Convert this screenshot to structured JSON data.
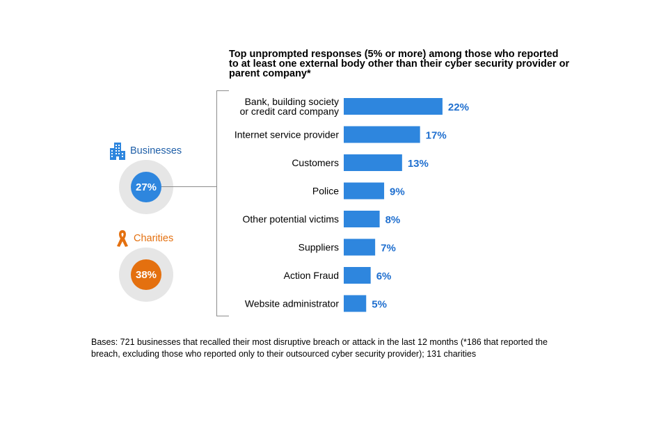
{
  "title_lines": [
    "Top unprompted responses (5% or more) among those who reported",
    "to at least one external body other than their cyber security provider or",
    "parent company*"
  ],
  "segments": {
    "businesses": {
      "label": "Businesses",
      "value": "27%",
      "color": "#2e86de",
      "label_color": "#1f5fa8",
      "icon": "office-building-icon"
    },
    "charities": {
      "label": "Charities",
      "value": "38%",
      "color": "#e4700f",
      "label_color": "#e4700f",
      "icon": "awareness-ribbon-icon"
    }
  },
  "chart_data": {
    "type": "bar",
    "orientation": "horizontal",
    "categories": [
      [
        "Bank, building society",
        "or credit card company"
      ],
      [
        "Internet service provider"
      ],
      [
        "Customers"
      ],
      [
        "Police"
      ],
      [
        "Other potential victims"
      ],
      [
        "Suppliers"
      ],
      [
        "Action Fraud"
      ],
      [
        "Website administrator"
      ]
    ],
    "values": [
      22,
      17,
      13,
      9,
      8,
      7,
      6,
      5
    ],
    "value_labels": [
      "22%",
      "17%",
      "13%",
      "9%",
      "8%",
      "7%",
      "6%",
      "5%"
    ],
    "bar_color": "#2e86de",
    "value_color": "#1f6fcf"
  },
  "footnote_lines": [
    "Bases: 721 businesses that recalled their most disruptive breach or attack in the last 12 months (*186 that reported the",
    "breach, excluding those who reported only to their outsourced cyber security provider); 131 charities"
  ]
}
